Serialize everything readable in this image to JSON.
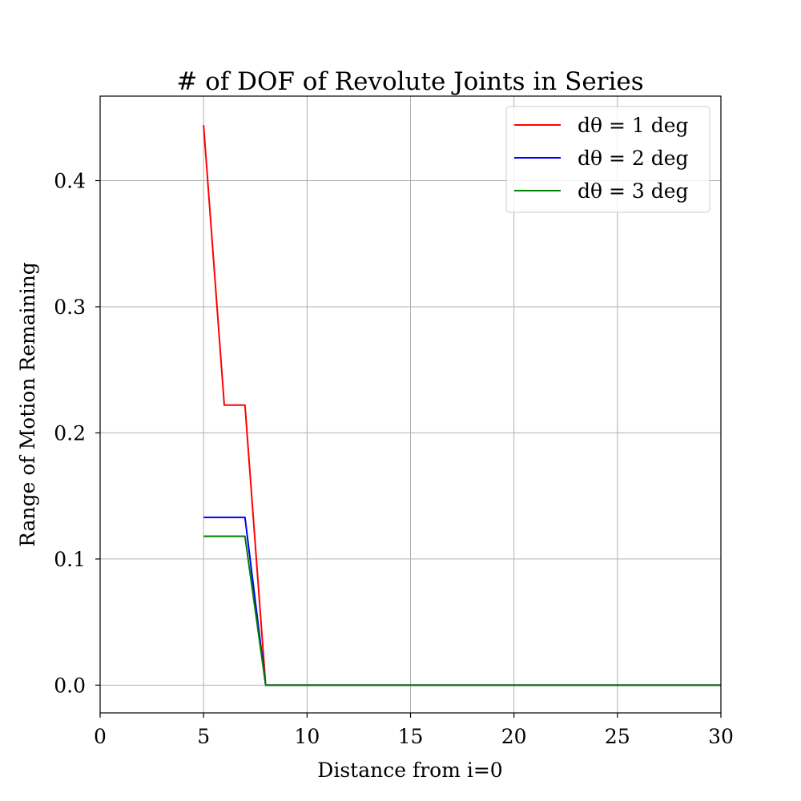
{
  "chart_data": {
    "type": "line",
    "title": "# of DOF of Revolute Joints in Series",
    "xlabel": "Distance from i=0",
    "ylabel": "Range of Motion Remaining",
    "xlim": [
      0,
      30
    ],
    "ylim": [
      -0.022,
      0.467
    ],
    "xticks": [
      0,
      5,
      10,
      15,
      20,
      25,
      30
    ],
    "xtick_labels": [
      "0",
      "5",
      "10",
      "15",
      "20",
      "25",
      "30"
    ],
    "yticks": [
      0.0,
      0.1,
      0.2,
      0.3,
      0.4
    ],
    "ytick_labels": [
      "0.0",
      "0.1",
      "0.2",
      "0.3",
      "0.4"
    ],
    "grid": true,
    "legend_position": "top-right",
    "series": [
      {
        "name": "dθ = 1 deg",
        "color": "#ff0000",
        "x": [
          5,
          6,
          7,
          8,
          9,
          10,
          11,
          12,
          13,
          14,
          15,
          16,
          17,
          18,
          19,
          20,
          21,
          22,
          23,
          24,
          25,
          26,
          27,
          28,
          29,
          30
        ],
        "y": [
          0.444,
          0.222,
          0.222,
          0.0,
          0.0,
          0.0,
          0.0,
          0.0,
          0.0,
          0.0,
          0.0,
          0.0,
          0.0,
          0.0,
          0.0,
          0.0,
          0.0,
          0.0,
          0.0,
          0.0,
          0.0,
          0.0,
          0.0,
          0.0,
          0.0,
          0.0
        ]
      },
      {
        "name": "dθ = 2 deg",
        "color": "#0000ff",
        "x": [
          5,
          6,
          7,
          8,
          9,
          10,
          11,
          12,
          13,
          14,
          15,
          16,
          17,
          18,
          19,
          20,
          21,
          22,
          23,
          24,
          25,
          26,
          27,
          28,
          29,
          30
        ],
        "y": [
          0.133,
          0.133,
          0.133,
          0.0,
          0.0,
          0.0,
          0.0,
          0.0,
          0.0,
          0.0,
          0.0,
          0.0,
          0.0,
          0.0,
          0.0,
          0.0,
          0.0,
          0.0,
          0.0,
          0.0,
          0.0,
          0.0,
          0.0,
          0.0,
          0.0,
          0.0
        ]
      },
      {
        "name": "dθ = 3 deg",
        "color": "#008000",
        "x": [
          5,
          6,
          7,
          8,
          9,
          10,
          11,
          12,
          13,
          14,
          15,
          16,
          17,
          18,
          19,
          20,
          21,
          22,
          23,
          24,
          25,
          26,
          27,
          28,
          29,
          30
        ],
        "y": [
          0.118,
          0.118,
          0.118,
          0.0,
          0.0,
          0.0,
          0.0,
          0.0,
          0.0,
          0.0,
          0.0,
          0.0,
          0.0,
          0.0,
          0.0,
          0.0,
          0.0,
          0.0,
          0.0,
          0.0,
          0.0,
          0.0,
          0.0,
          0.0,
          0.0,
          0.0
        ]
      }
    ]
  }
}
